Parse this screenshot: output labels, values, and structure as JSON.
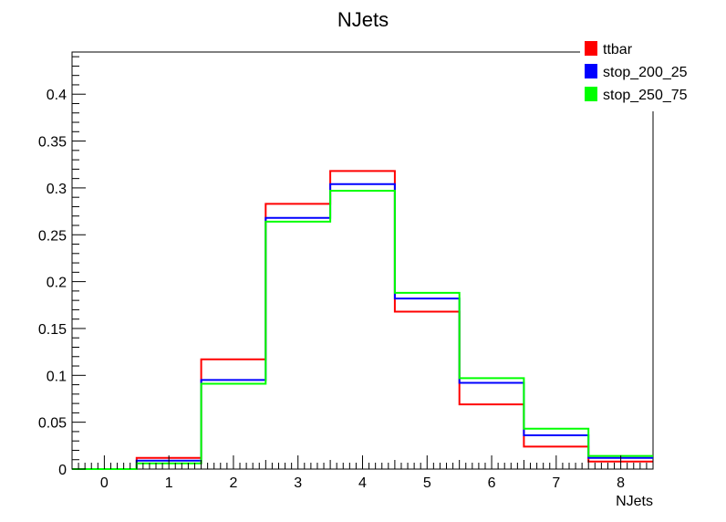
{
  "chart_data": {
    "type": "step-histogram",
    "title": "NJets",
    "xlabel": "NJets",
    "ylabel": "",
    "xlim": [
      -0.5,
      8.5
    ],
    "ylim": [
      0,
      0.445
    ],
    "bins": [
      0,
      1,
      2,
      3,
      4,
      5,
      6,
      7,
      8
    ],
    "x_ticks": [
      "0",
      "1",
      "2",
      "3",
      "4",
      "5",
      "6",
      "7",
      "8"
    ],
    "y_ticks": [
      "0",
      "0.05",
      "0.1",
      "0.15",
      "0.2",
      "0.25",
      "0.3",
      "0.35",
      "0.4"
    ],
    "legend_position": "top-right",
    "series": [
      {
        "name": "ttbar",
        "color": "#ff0000",
        "values": [
          0,
          0.012,
          0.117,
          0.283,
          0.318,
          0.168,
          0.069,
          0.024,
          0.008
        ]
      },
      {
        "name": "stop_200_25",
        "color": "#0000ff",
        "values": [
          0,
          0.009,
          0.095,
          0.268,
          0.304,
          0.182,
          0.092,
          0.036,
          0.012
        ]
      },
      {
        "name": "stop_250_75",
        "color": "#00ff00",
        "values": [
          0,
          0.006,
          0.091,
          0.264,
          0.297,
          0.188,
          0.097,
          0.043,
          0.014
        ]
      }
    ]
  }
}
